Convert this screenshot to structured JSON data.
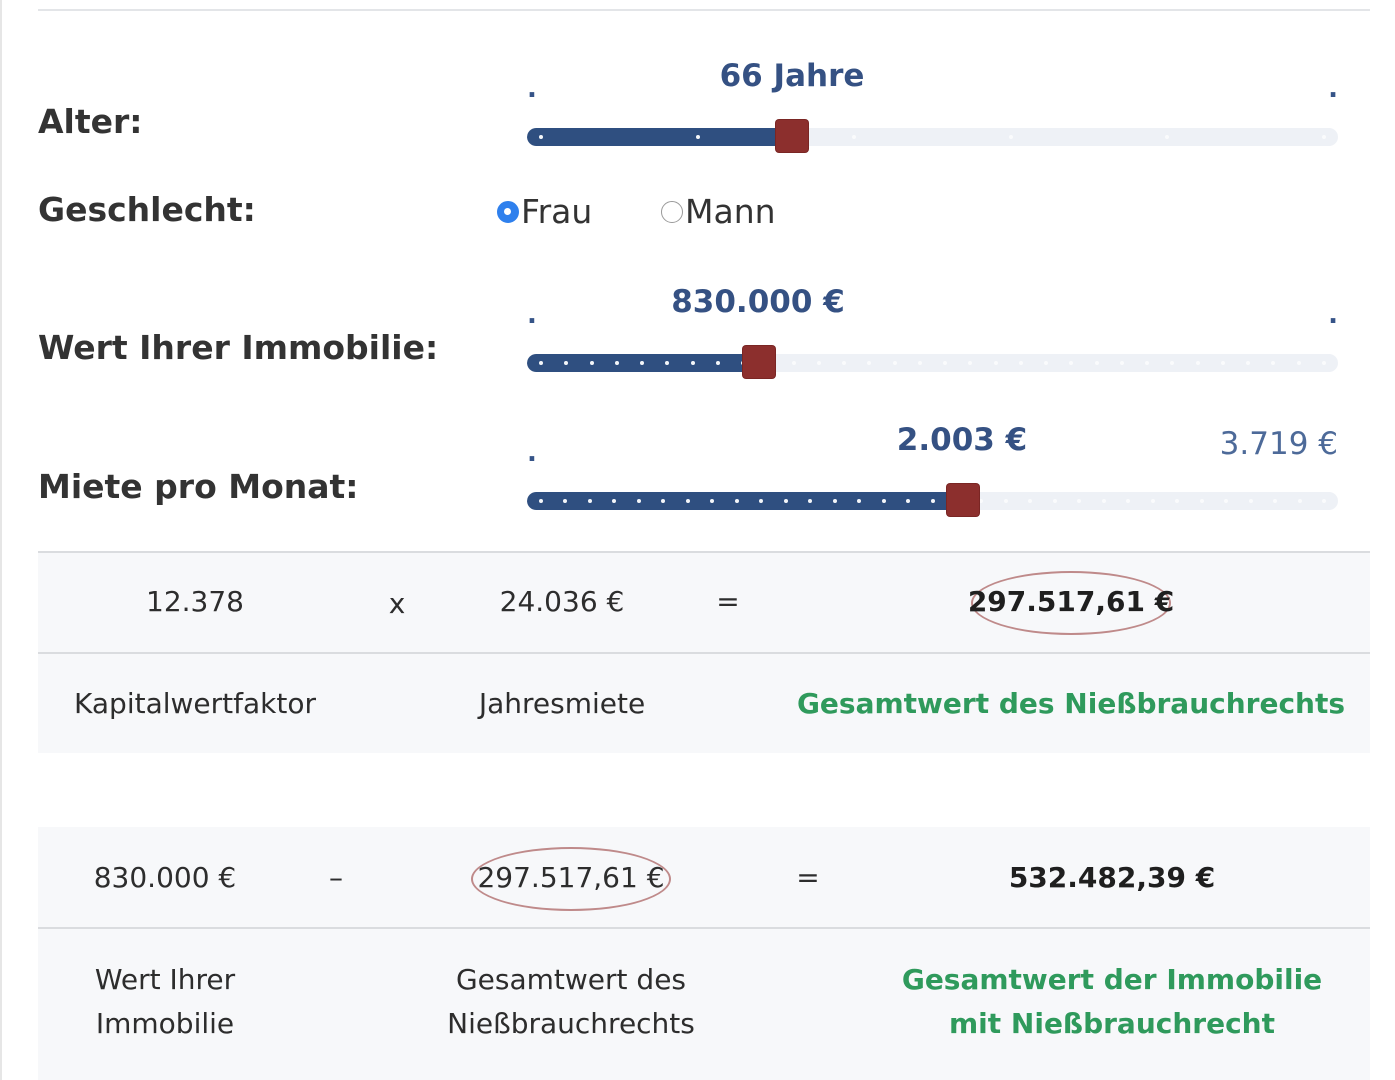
{
  "age": {
    "label": "Alter:",
    "value_label": "66 Jahre",
    "min_marker": ".",
    "max_marker": ".",
    "fraction": 0.327,
    "tick_count": 6
  },
  "gender": {
    "label": "Geschlecht:",
    "options": [
      {
        "label": "Frau",
        "checked": true
      },
      {
        "label": "Mann",
        "checked": false
      }
    ]
  },
  "property": {
    "label": "Wert Ihrer Immobilie:",
    "value_label": "830.000 €",
    "min_marker": ".",
    "max_marker": ".",
    "fraction": 0.286,
    "tick_count": 32
  },
  "rent": {
    "label": "Miete pro Monat:",
    "value_label": "2.003 €",
    "min_marker": ".",
    "max_label": "3.719 €",
    "fraction": 0.537,
    "tick_count": 33
  },
  "calc1": {
    "factor": "12.378",
    "times": "x",
    "annual_rent": "24.036 €",
    "equals": "=",
    "result": "297.517,61 €",
    "factor_label": "Kapitalwertfaktor",
    "annual_rent_label": "Jahresmiete",
    "result_label": "Gesamtwert des Nießbrauchrechts"
  },
  "calc2": {
    "property_value": "830.000 €",
    "minus": "–",
    "usufruct_value": "297.517,61 €",
    "equals": "=",
    "result": "532.482,39 €",
    "property_label_l1": "Wert Ihrer",
    "property_label_l2": "Immobilie",
    "usufruct_label_l1": "Gesamtwert des",
    "usufruct_label_l2": "Nießbrauchrechts",
    "result_label_l1": "Gesamtwert der Immobilie",
    "result_label_l2": "mit Nießbrauchrecht"
  },
  "colors": {
    "fill": "#2f4f80",
    "track": "#eef1f6",
    "handle": "#8c2f2d",
    "radio": "#2f80ed",
    "accent_green": "#2f9a5c"
  }
}
